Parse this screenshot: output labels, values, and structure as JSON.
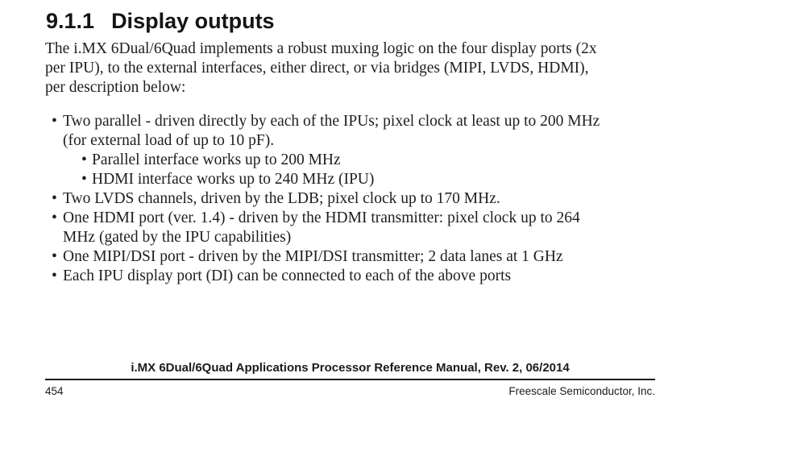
{
  "colors": {
    "background": "#ffffff",
    "text": "#1e1e1e"
  },
  "section": {
    "number": "9.1.1",
    "title": "Display outputs"
  },
  "intro": {
    "lines": [
      "The i.MX 6Dual/6Quad implements a robust muxing logic on the four display ports (2x",
      "per IPU), to the external interfaces, either direct, or via bridges (MIPI, LVDS, HDMI),",
      "per description below:"
    ]
  },
  "bullets": [
    {
      "level": 1,
      "lines": [
        "Two parallel - driven directly by each of the IPUs; pixel clock at least up to 200 MHz",
        "(for external load of up to 10 pF)."
      ]
    },
    {
      "level": 2,
      "lines": [
        "Parallel interface works up to 200 MHz"
      ]
    },
    {
      "level": 2,
      "lines": [
        "HDMI interface works up to 240 MHz (IPU)"
      ]
    },
    {
      "level": 1,
      "lines": [
        "Two LVDS channels, driven by the LDB; pixel clock up to 170 MHz."
      ]
    },
    {
      "level": 1,
      "lines": [
        "One HDMI port (ver. 1.4) - driven by the HDMI transmitter: pixel clock up to 264",
        "MHz (gated by the IPU capabilities)"
      ]
    },
    {
      "level": 1,
      "lines": [
        "One MIPI/DSI port - driven by the MIPI/DSI transmitter; 2 data lanes at 1 GHz"
      ]
    },
    {
      "level": 1,
      "lines": [
        "Each IPU display port (DI) can be connected to each of the above ports"
      ]
    }
  ],
  "footer": {
    "manual_title": "i.MX 6Dual/6Quad Applications Processor Reference Manual, Rev. 2, 06/2014",
    "page_number": "454",
    "publisher": "Freescale Semiconductor, Inc."
  }
}
